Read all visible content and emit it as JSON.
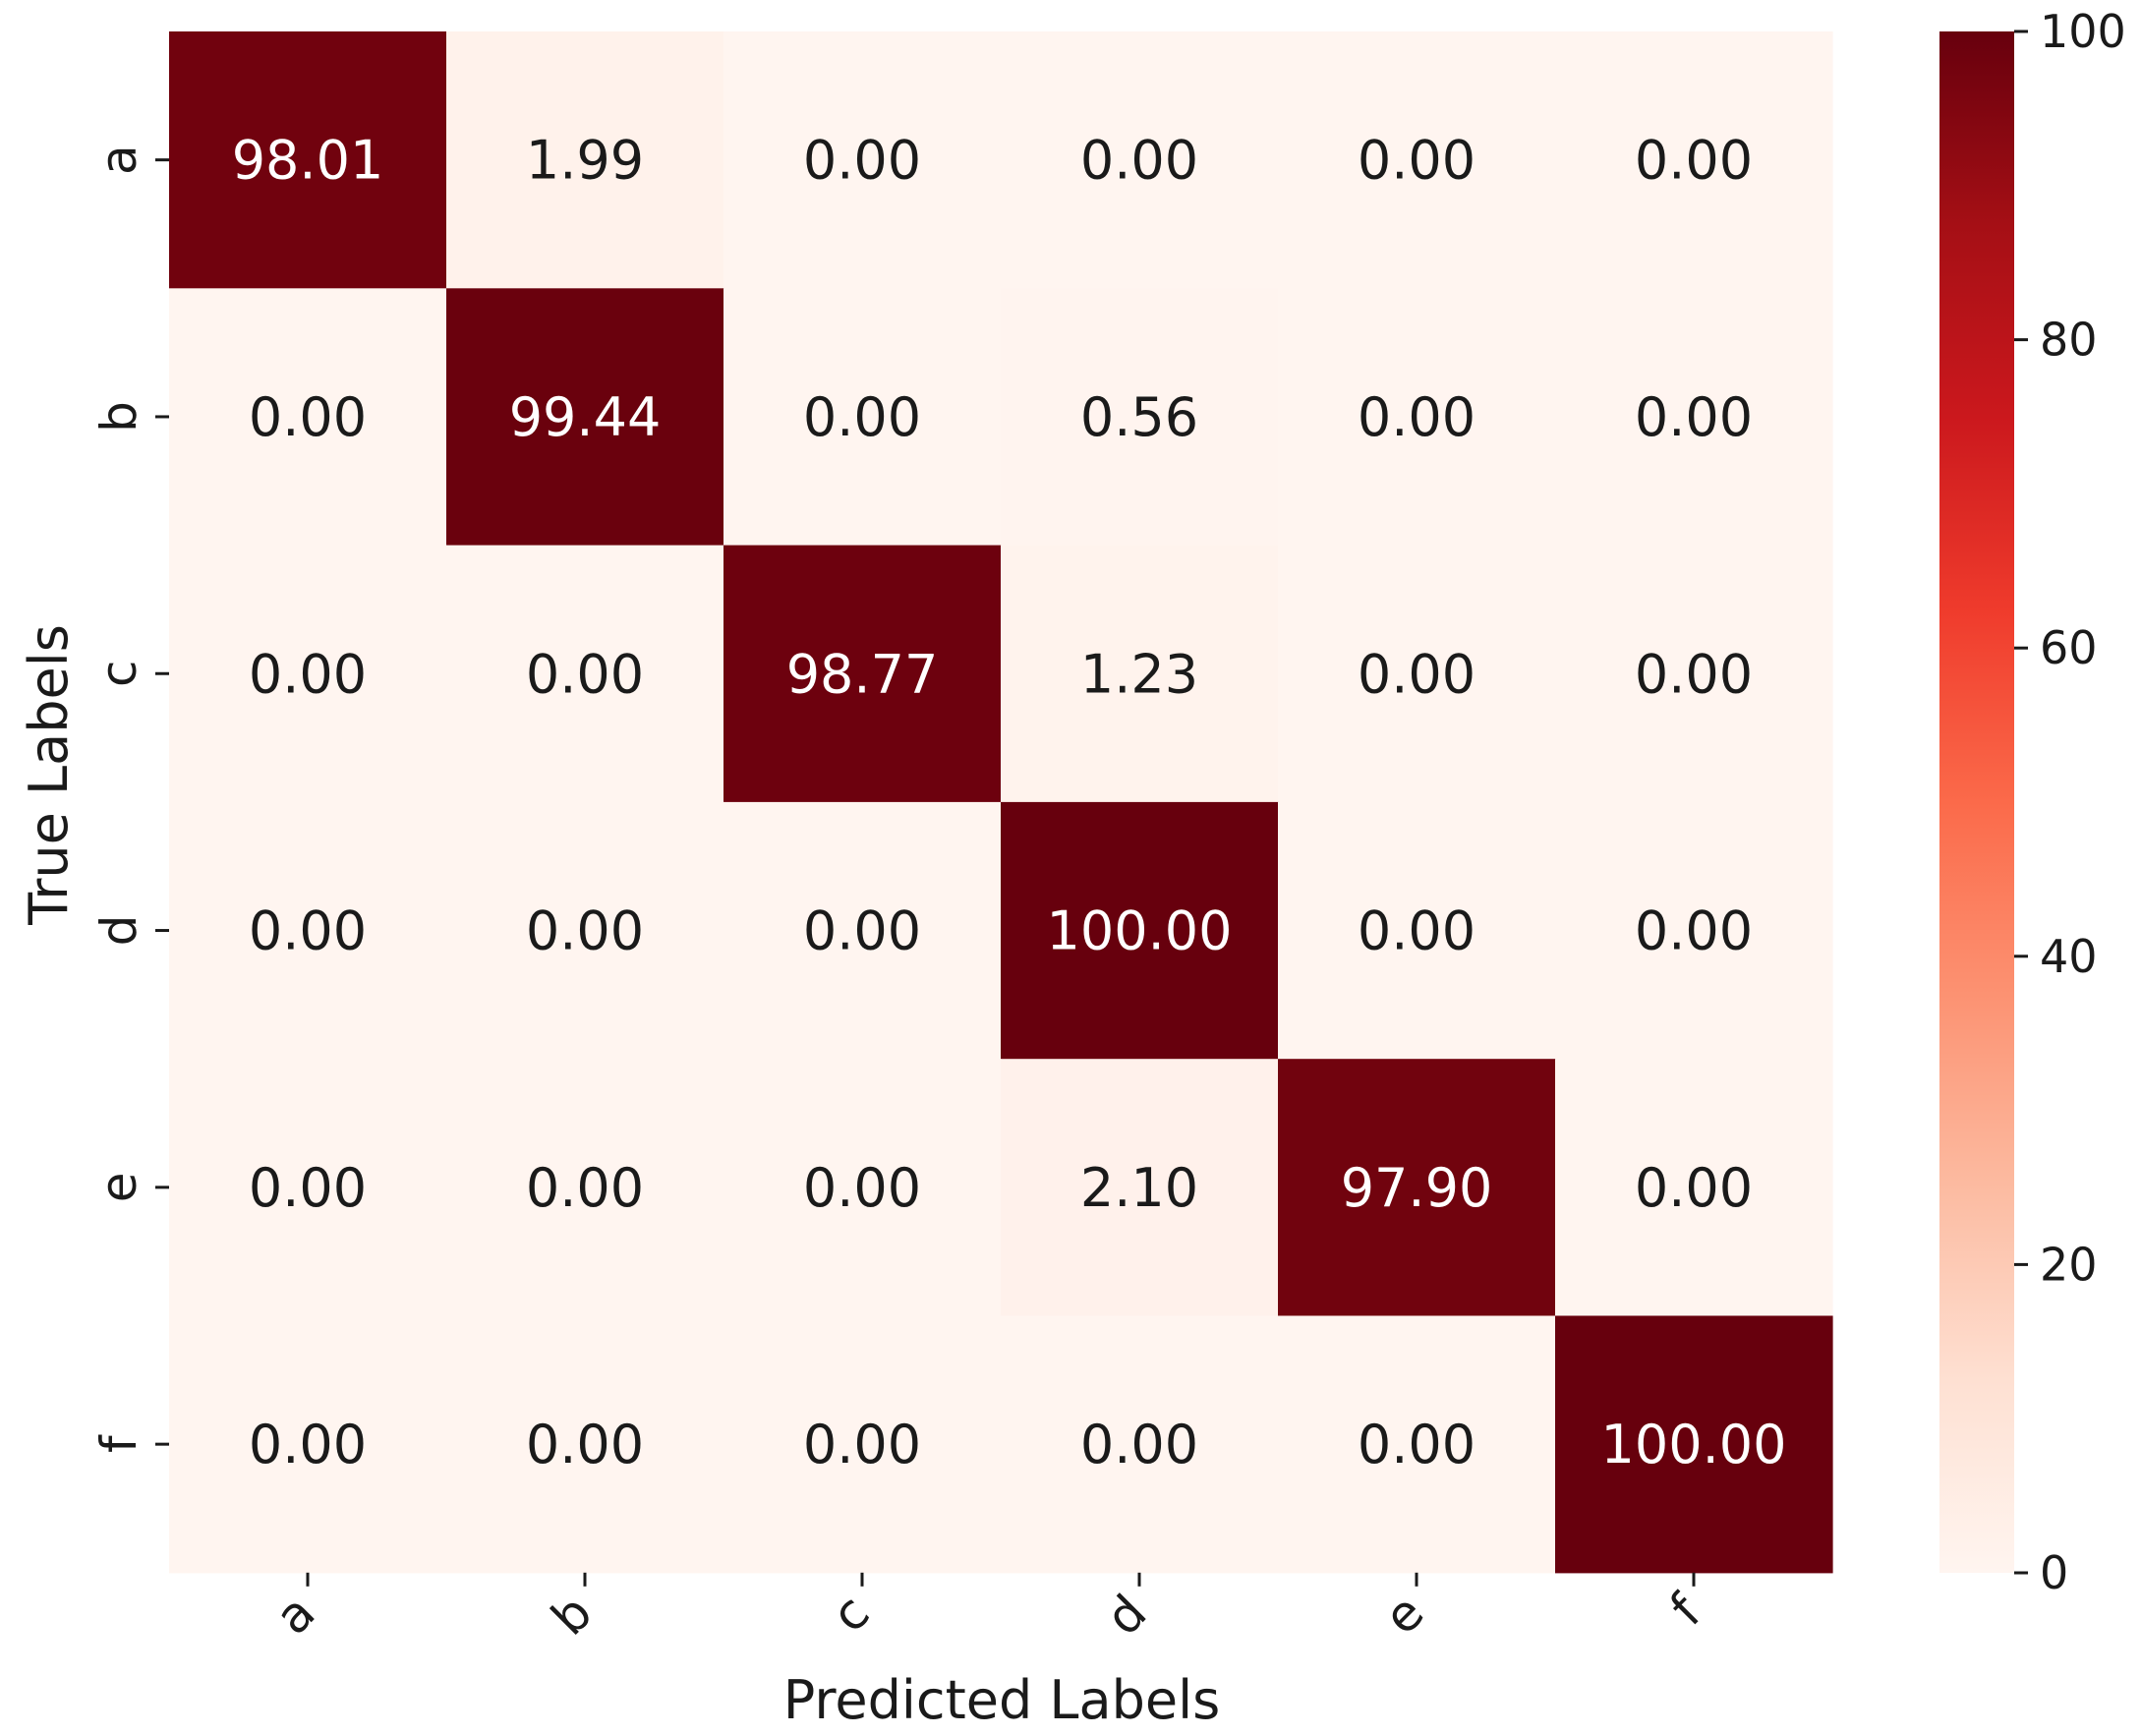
{
  "chart_data": {
    "type": "heatmap",
    "title": "",
    "xlabel": "Predicted Labels",
    "ylabel": "True Labels",
    "x_categories": [
      "a",
      "b",
      "c",
      "d",
      "e",
      "f"
    ],
    "y_categories": [
      "a",
      "b",
      "c",
      "d",
      "e",
      "f"
    ],
    "values": [
      [
        98.01,
        1.99,
        0.0,
        0.0,
        0.0,
        0.0
      ],
      [
        0.0,
        99.44,
        0.0,
        0.56,
        0.0,
        0.0
      ],
      [
        0.0,
        0.0,
        98.77,
        1.23,
        0.0,
        0.0
      ],
      [
        0.0,
        0.0,
        0.0,
        100.0,
        0.0,
        0.0
      ],
      [
        0.0,
        0.0,
        0.0,
        2.1,
        97.9,
        0.0
      ],
      [
        0.0,
        0.0,
        0.0,
        0.0,
        0.0,
        100.0
      ]
    ],
    "value_format": "0.00",
    "colormap": "Reds",
    "colorbar": {
      "range": [
        0,
        100
      ],
      "ticks": [
        0,
        20,
        40,
        60,
        80,
        100
      ],
      "placement": "right"
    },
    "grid": false,
    "xtick_rotation_deg": 45
  }
}
